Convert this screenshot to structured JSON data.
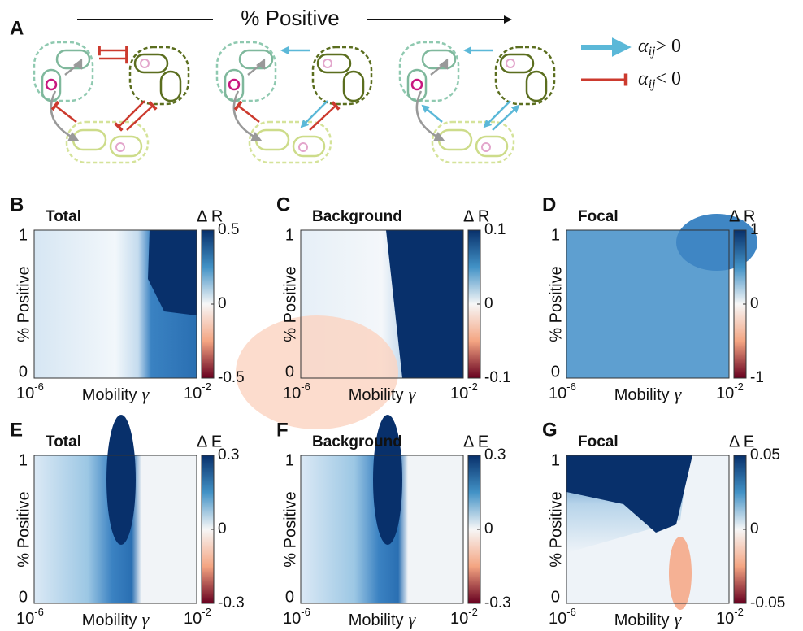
{
  "panel_a": {
    "letter": "A",
    "title": "% Positive",
    "legend": [
      {
        "symbol": "α",
        "sub": "ij",
        "relation": "> 0"
      },
      {
        "symbol": "α",
        "sub": "ij",
        "relation": "< 0"
      }
    ]
  },
  "axes": {
    "ylabel": "% Positive",
    "yticks": [
      1,
      0
    ],
    "xlabel": "Mobility",
    "xlabel_symbol": "γ",
    "xticks": [
      {
        "base": "10",
        "exp": "-6"
      },
      {
        "base": "10",
        "exp": "-2"
      }
    ]
  },
  "panels": [
    {
      "letter": "B",
      "title": "Total",
      "cbar_label": "Δ R",
      "cbar_ticks": [
        0.5,
        0,
        -0.5
      ]
    },
    {
      "letter": "C",
      "title": "Background",
      "cbar_label": "Δ R",
      "cbar_ticks": [
        0.1,
        0,
        -0.1
      ]
    },
    {
      "letter": "D",
      "title": "Focal",
      "cbar_label": "Δ R",
      "cbar_ticks": [
        1,
        0,
        -1
      ]
    },
    {
      "letter": "E",
      "title": "Total",
      "cbar_label": "Δ E",
      "cbar_ticks": [
        0.3,
        0,
        -0.3
      ]
    },
    {
      "letter": "F",
      "title": "Background",
      "cbar_label": "Δ E",
      "cbar_ticks": [
        0.3,
        0,
        -0.3
      ]
    },
    {
      "letter": "G",
      "title": "Focal",
      "cbar_label": "Δ E",
      "cbar_ticks": [
        0.05,
        0,
        -0.05
      ]
    }
  ]
}
